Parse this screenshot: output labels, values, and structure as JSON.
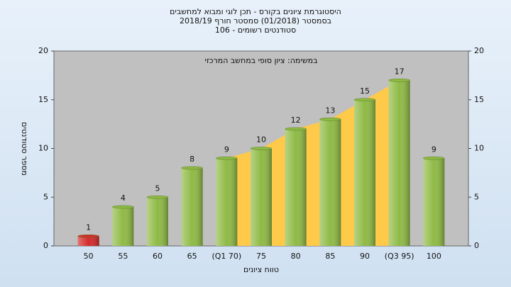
{
  "chart_data": {
    "type": "bar",
    "title": "היסטוגרמת ציונים בקורס - תכן לוגי ומבוא למחשבים",
    "subtitle": "בסמסטר  (01/2018)  סמסטר חורף 2018/19",
    "subtitle2": "סטודנטים רשומים - 106",
    "annotation": "במשימה: ציון סופי במחשב המרכזי",
    "xlabel": "טווח ציונים",
    "ylabel": "מספר סטודנטים",
    "categories": [
      "50",
      "55",
      "60",
      "65",
      "(Q1 70)",
      "75",
      "80",
      "85",
      "90",
      "(Q3 95)",
      "100"
    ],
    "values": [
      1,
      4,
      5,
      8,
      9,
      10,
      12,
      13,
      15,
      17,
      9
    ],
    "colors": [
      "#d42a2a",
      "#8fba45",
      "#8fba45",
      "#8fba45",
      "#8fba45",
      "#8fba45",
      "#8fba45",
      "#8fba45",
      "#8fba45",
      "#8fba45",
      "#8fba45"
    ],
    "area_color": "#ffc94a",
    "ylim": [
      0,
      20
    ],
    "yticks": [
      0,
      5,
      10,
      15,
      20
    ],
    "y2lim": [
      0,
      20
    ],
    "y2ticks": [
      0,
      5,
      10,
      15,
      20
    ],
    "grid": false
  }
}
